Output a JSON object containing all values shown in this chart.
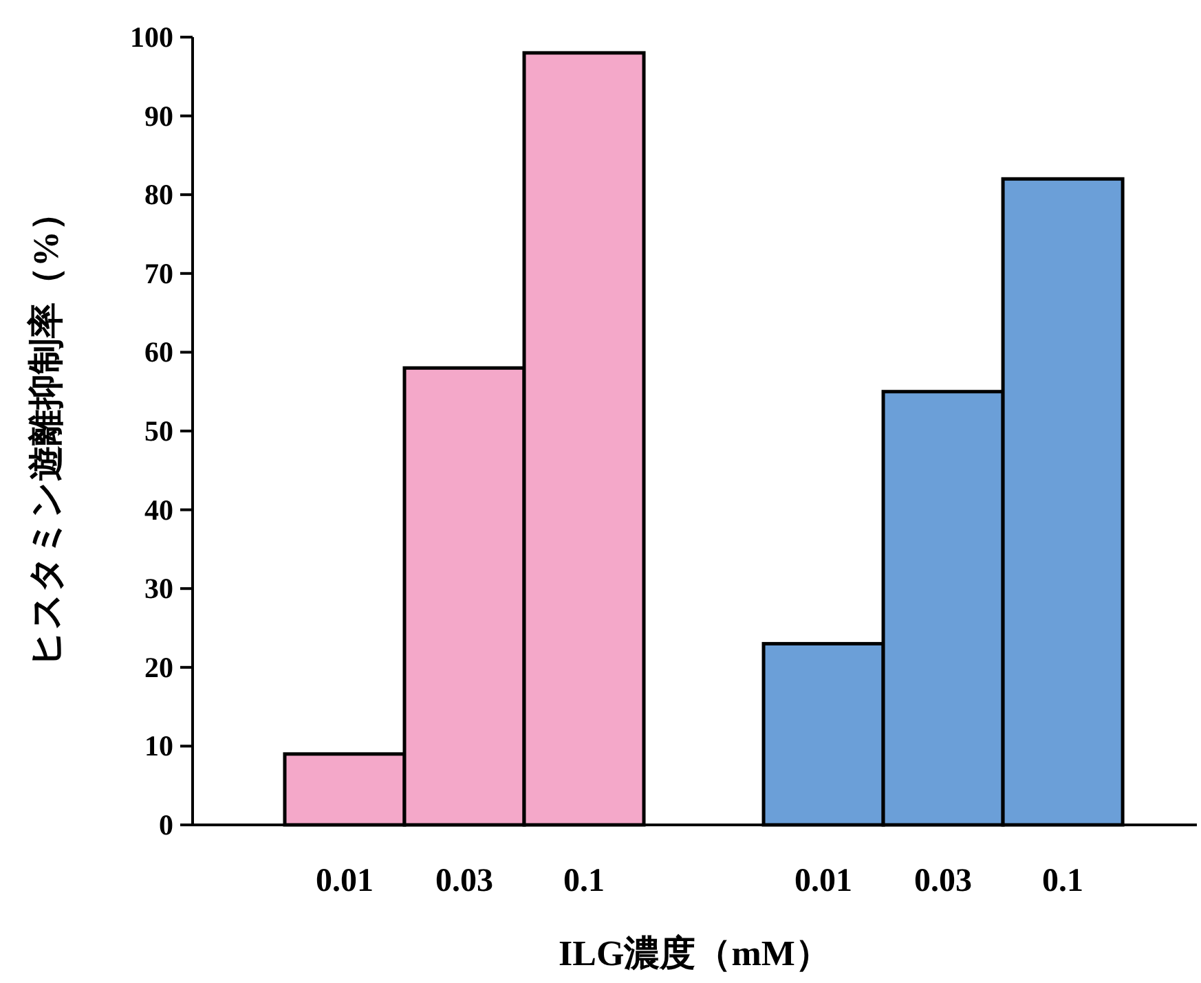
{
  "chart_data": {
    "type": "bar",
    "xlabel": "ILG濃度（mM）",
    "ylabel": "ヒスタミン遊離抑制率（%）",
    "categories": [
      "0.01",
      "0.03",
      "0.1",
      null,
      "0.01",
      "0.03",
      "0.1"
    ],
    "values": [
      9,
      58,
      98,
      null,
      23,
      55,
      82
    ],
    "colors": [
      "#f4a8c9",
      "#f4a8c9",
      "#f4a8c9",
      null,
      "#6b9fd8",
      "#6b9fd8",
      "#6b9fd8"
    ],
    "ylim": [
      0,
      100
    ],
    "yticks": [
      0,
      10,
      20,
      30,
      40,
      50,
      60,
      70,
      80,
      90,
      100
    ],
    "grid": false
  }
}
